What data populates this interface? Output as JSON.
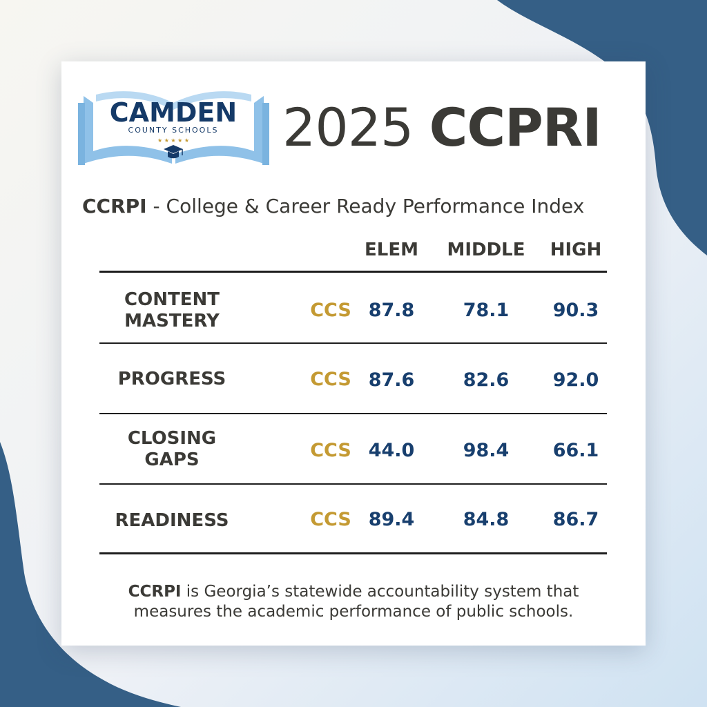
{
  "logo": {
    "name": "CAMDEN",
    "tagline": "COUNTY SCHOOLS",
    "stars": "★ ★ ★ ★ ★",
    "icon": "graduation-cap-icon",
    "book_icon": "open-book-icon"
  },
  "headline": {
    "year": "2025",
    "acronym": "CCPRI"
  },
  "subtitle": {
    "acronym": "CCRPI",
    "text": " - College & Career Ready Performance Index"
  },
  "columns": [
    "ELEM",
    "MIDDLE",
    "HIGH"
  ],
  "rows": [
    {
      "label_line1": "CONTENT",
      "label_line2": "MASTERY",
      "tag": "CCS",
      "values": [
        "87.8",
        "78.1",
        "90.3"
      ]
    },
    {
      "label_line1": "PROGRESS",
      "label_line2": "",
      "tag": "CCS",
      "values": [
        "87.6",
        "82.6",
        "92.0"
      ]
    },
    {
      "label_line1": "CLOSING",
      "label_line2": "GAPS",
      "tag": "CCS",
      "values": [
        "44.0",
        "98.4",
        "66.1"
      ]
    },
    {
      "label_line1": "READINESS",
      "label_line2": "",
      "tag": "CCS",
      "values": [
        "89.4",
        "84.8",
        "86.7"
      ]
    }
  ],
  "footnote": {
    "acronym": "CCRPI",
    "line1": " is Georgia’s statewide accountability system that",
    "line2": "measures the academic performance of public schools."
  },
  "colors": {
    "text": "#3b3a36",
    "gold": "#c49a33",
    "navy": "#183f6e",
    "background_blob": "#355f86",
    "logo_book": "#8fc1e8"
  }
}
